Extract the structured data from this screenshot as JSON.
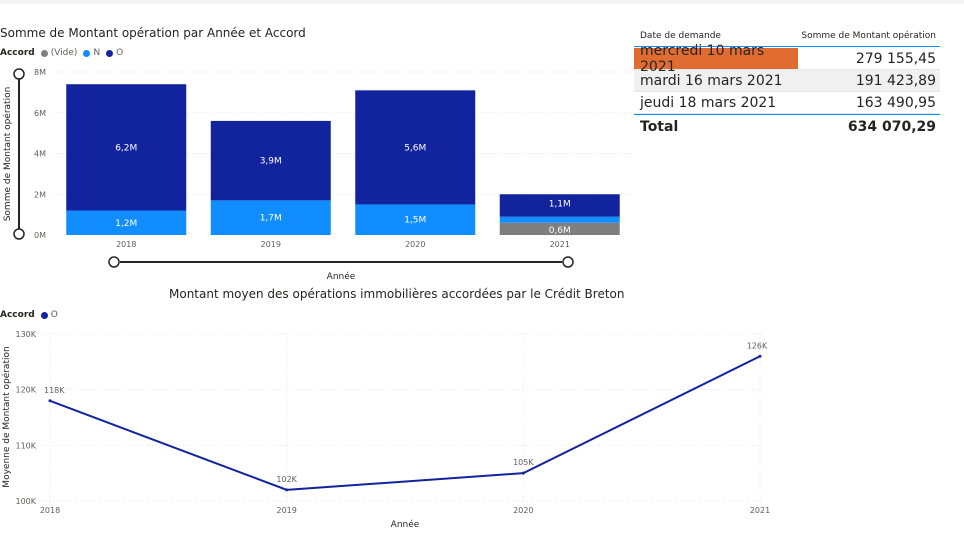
{
  "colors": {
    "vide": "#7f7f7f",
    "n": "#118dff",
    "o": "#12239e",
    "highlight": "#e16c32"
  },
  "bar_chart": {
    "title": "Somme de Montant opération par Année et Accord",
    "legend_title": "Accord",
    "legend": [
      "(Vide)",
      "N",
      "O"
    ],
    "ylabel": "Somme de Montant opération",
    "xlabel": "Année",
    "yticks": [
      "0M",
      "2M",
      "4M",
      "6M",
      "8M"
    ]
  },
  "line_chart": {
    "title": "Montant moyen des opérations immobilières accordées par le Crédit Breton",
    "legend_title": "Accord",
    "legend": [
      "O"
    ],
    "ylabel": "Moyenne de Montant opération",
    "xlabel": "Année",
    "yticks": [
      "100K",
      "110K",
      "120K",
      "130K"
    ]
  },
  "table": {
    "headers": [
      "Date de demande",
      "Somme de Montant opération"
    ],
    "rows": [
      {
        "date": "mercredi 10 mars 2021",
        "amount": "279 155,45"
      },
      {
        "date": "mardi 16 mars 2021",
        "amount": "191 423,89"
      },
      {
        "date": "jeudi 18 mars 2021",
        "amount": "163 490,95"
      }
    ],
    "total_label": "Total",
    "total_value": "634 070,29"
  },
  "chart_data": [
    {
      "type": "bar",
      "stacked": true,
      "title": "Somme de Montant opération par Année et Accord",
      "xlabel": "Année",
      "ylabel": "Somme de Montant opération",
      "categories": [
        "2018",
        "2019",
        "2020",
        "2021"
      ],
      "ylim": [
        0,
        8
      ],
      "series": [
        {
          "name": "(Vide)",
          "values": [
            0,
            0,
            0,
            0.6
          ],
          "labels": [
            "",
            "",
            "",
            "0,6M"
          ]
        },
        {
          "name": "N",
          "values": [
            1.2,
            1.7,
            1.5,
            0.3
          ],
          "labels": [
            "1,2M",
            "1,7M",
            "1,5M",
            ""
          ]
        },
        {
          "name": "O",
          "values": [
            6.2,
            3.9,
            5.6,
            1.1
          ],
          "labels": [
            "6,2M",
            "3,9M",
            "5,6M",
            "1,1M"
          ]
        }
      ]
    },
    {
      "type": "line",
      "title": "Montant moyen des opérations immobilières accordées par le Crédit Breton",
      "xlabel": "Année",
      "ylabel": "Moyenne de Montant opération",
      "x": [
        "2018",
        "2019",
        "2020",
        "2021"
      ],
      "ylim": [
        100,
        130
      ],
      "series": [
        {
          "name": "O",
          "values": [
            118,
            102,
            105,
            126
          ],
          "labels": [
            "118K",
            "102K",
            "105K",
            "126K"
          ]
        }
      ]
    }
  ]
}
